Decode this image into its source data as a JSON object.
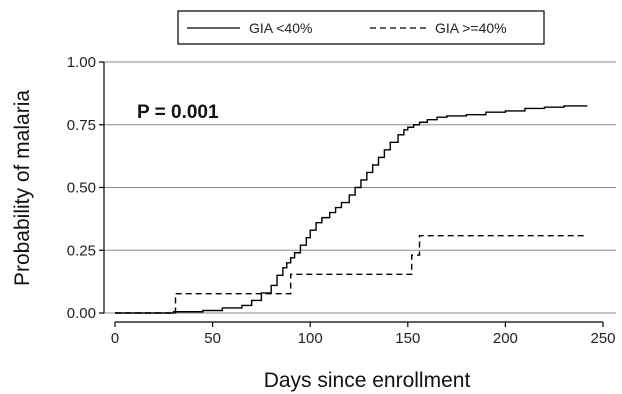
{
  "chart_data": {
    "type": "line",
    "title": "",
    "xlabel": "Days since enrollment",
    "ylabel": "Probability of malaria",
    "xlim": [
      0,
      250
    ],
    "ylim": [
      0,
      1
    ],
    "xticks": [
      "0",
      "50",
      "100",
      "150",
      "200",
      "250"
    ],
    "xtick_values": [
      0,
      50,
      100,
      150,
      200,
      250
    ],
    "yticks": [
      "0.00",
      "0.25",
      "0.50",
      "0.75",
      "1.00"
    ],
    "ytick_values": [
      0,
      0.25,
      0.5,
      0.75,
      1.0
    ],
    "grid": "horizontal",
    "legend_position": "top",
    "annotation": "P = 0.001",
    "series": [
      {
        "name": "GIA <40%",
        "style": "solid",
        "color": "#000000",
        "x": [
          0,
          30,
          45,
          55,
          65,
          70,
          75,
          80,
          83,
          86,
          88,
          90,
          92,
          95,
          98,
          100,
          103,
          106,
          110,
          113,
          116,
          120,
          123,
          126,
          129,
          132,
          135,
          138,
          141,
          145,
          148,
          150,
          153,
          156,
          160,
          165,
          170,
          180,
          190,
          200,
          210,
          220,
          230,
          242
        ],
        "y": [
          0,
          0.005,
          0.01,
          0.02,
          0.03,
          0.05,
          0.08,
          0.11,
          0.15,
          0.18,
          0.2,
          0.22,
          0.24,
          0.27,
          0.3,
          0.33,
          0.36,
          0.38,
          0.4,
          0.42,
          0.44,
          0.47,
          0.5,
          0.53,
          0.56,
          0.59,
          0.62,
          0.65,
          0.68,
          0.71,
          0.73,
          0.74,
          0.75,
          0.76,
          0.77,
          0.78,
          0.785,
          0.79,
          0.8,
          0.805,
          0.815,
          0.82,
          0.825,
          0.825
        ]
      },
      {
        "name": "GIA >=40%",
        "style": "dashed",
        "color": "#000000",
        "x": [
          0,
          31,
          81,
          90,
          150,
          152,
          156,
          242
        ],
        "y": [
          0,
          0.077,
          0.077,
          0.154,
          0.154,
          0.231,
          0.308,
          0.308
        ]
      }
    ]
  }
}
